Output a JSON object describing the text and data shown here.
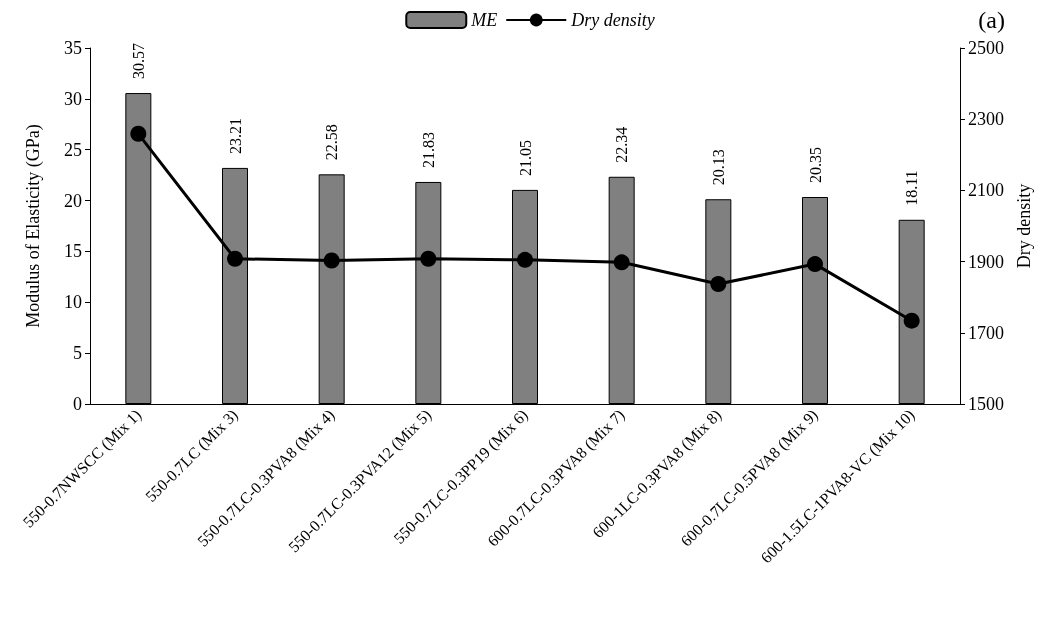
{
  "chart_data": {
    "type": "bar",
    "ylabel": "Modulus of Elasticity (GPa)",
    "y2label": "Dry density",
    "annotations": [
      "(a)"
    ],
    "categories": [
      "550-0.7NWSCC (Mix 1)",
      "550-0.7LC (Mix 3)",
      "550-0.7LC-0.3PVA8 (Mix 4)",
      "550-0.7LC-0.3PVA12 (Mix 5)",
      "550-0.7LC-0.3PP19 (Mix 6)",
      "600-0.7LC-0.3PVA8 (Mix 7)",
      "600-1LC-0.3PVA8 (Mix 8)",
      "600-0.7LC-0.5PVA8 (Mix 9)",
      "600-1.5LC-1PVA8-VC (Mix 10)"
    ],
    "series": [
      {
        "name": "ME",
        "color": "#808080",
        "values": [
          30.57,
          23.21,
          22.58,
          21.83,
          21.05,
          22.34,
          20.13,
          20.35,
          18.11
        ],
        "data_labels": true
      },
      {
        "name": "Dry density",
        "type": "line",
        "axis": "y2",
        "color": "#000000",
        "marker": "circle",
        "line_style": "solid",
        "values": [
          2259,
          1908,
          1903,
          1908,
          1905,
          1898,
          1837,
          1893,
          1734
        ]
      }
    ],
    "ylim": [
      0,
      35
    ],
    "yticks": [
      0,
      5,
      10,
      15,
      20,
      25,
      30,
      35
    ],
    "y2lim": [
      1500,
      2500
    ],
    "y2ticks": [
      1500,
      1700,
      1900,
      2100,
      2300,
      2500
    ],
    "grid": false,
    "legend": "top"
  }
}
